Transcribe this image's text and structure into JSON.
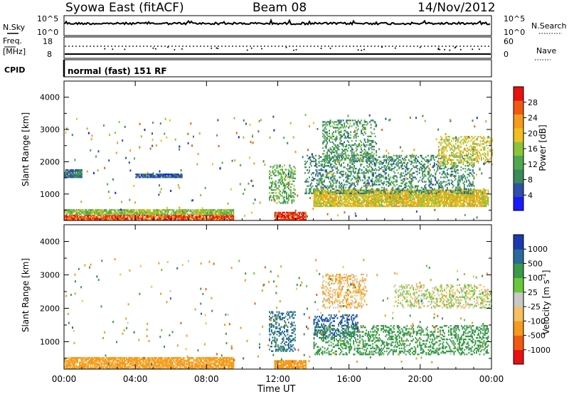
{
  "header": {
    "title": "Syowa East (fitACF)",
    "beam": "Beam 08",
    "date": "14/Nov/2012"
  },
  "nsky_panel": {
    "label": "N.Sky",
    "left_ticks": [
      "10^5",
      "10^0"
    ],
    "right_ticks": [
      "10^5",
      "10^0"
    ],
    "right_label": "N.Search"
  },
  "freq_panel": {
    "label_line1": "Freq.",
    "label_line2": "[MHz]",
    "left_ticks": [
      "18",
      "8"
    ],
    "right_ticks": [
      "60",
      "0"
    ],
    "right_label": "Nave"
  },
  "cpid_panel": {
    "label": "CPID",
    "mode_text": "normal (fast) 151 RF"
  },
  "x_axis": {
    "label": "Time UT",
    "ticks": [
      "00:00",
      "04:00",
      "08:00",
      "12:00",
      "16:00",
      "20:00",
      "00:00"
    ]
  },
  "colors": {
    "power_scale": [
      "#1a1aff",
      "#2f4fa8",
      "#3a8a5a",
      "#4fa84f",
      "#8ac43a",
      "#f0c020",
      "#f59a1a",
      "#f05a10",
      "#e81010"
    ],
    "velocity_scale": [
      "#e81010",
      "#f05a10",
      "#f59a1a",
      "#f5c060",
      "#c8c8c8",
      "#6ac83a",
      "#3a9a4a",
      "#2a6a9a",
      "#1a3ab0"
    ]
  },
  "chart_data": [
    {
      "type": "heatmap",
      "title": "",
      "xlabel": "Time UT",
      "ylabel": "Slant Range [km]",
      "xlim": [
        0,
        24
      ],
      "ylim": [
        180,
        4500
      ],
      "yticks": [
        "1000",
        "2000",
        "3000",
        "4000"
      ],
      "colorbar": {
        "label": "Power [dB]",
        "ticks": [
          "4",
          "8",
          "12",
          "16",
          "20",
          "24",
          "28"
        ],
        "range": [
          0,
          30
        ]
      },
      "echo_regions": [
        {
          "t": [
            0.0,
            9.5
          ],
          "range": [
            180,
            350
          ],
          "level": 26
        },
        {
          "t": [
            0.0,
            9.5
          ],
          "range": [
            350,
            520
          ],
          "level": 14
        },
        {
          "t": [
            11.8,
            13.6
          ],
          "range": [
            180,
            420
          ],
          "level": 27
        },
        {
          "t": [
            11.5,
            13.0
          ],
          "range": [
            700,
            1900
          ],
          "level": 12
        },
        {
          "t": [
            14.0,
            23.8
          ],
          "range": [
            600,
            1100
          ],
          "level": 18
        },
        {
          "t": [
            13.5,
            23.0
          ],
          "range": [
            1000,
            2200
          ],
          "level": 9
        },
        {
          "t": [
            14.5,
            17.5
          ],
          "range": [
            2000,
            3300
          ],
          "level": 10
        },
        {
          "t": [
            21.0,
            24.0
          ],
          "range": [
            1900,
            2800
          ],
          "level": 17
        },
        {
          "t": [
            0.0,
            1.0
          ],
          "range": [
            1500,
            1750
          ],
          "level": 8
        },
        {
          "t": [
            4.0,
            6.6
          ],
          "range": [
            1500,
            1600
          ],
          "level": 6
        }
      ]
    },
    {
      "type": "heatmap",
      "title": "",
      "xlabel": "Time UT",
      "ylabel": "Slant Range [km]",
      "xlim": [
        0,
        24
      ],
      "ylim": [
        180,
        4500
      ],
      "yticks": [
        "1000",
        "2000",
        "3000",
        "4000"
      ],
      "colorbar": {
        "label": "Velocity [m s^-1]",
        "ticks": [
          "-1000",
          "-500",
          "-100",
          "-25",
          "25",
          "100",
          "500",
          "1000"
        ]
      },
      "echo_regions": [
        {
          "t": [
            0.0,
            9.5
          ],
          "range": [
            180,
            520
          ],
          "velocity": -150
        },
        {
          "t": [
            11.8,
            13.6
          ],
          "range": [
            180,
            420
          ],
          "velocity": -300
        },
        {
          "t": [
            11.5,
            13.0
          ],
          "range": [
            700,
            1900
          ],
          "velocity": 600
        },
        {
          "t": [
            14.0,
            16.5
          ],
          "range": [
            1100,
            1800
          ],
          "velocity": 900
        },
        {
          "t": [
            14.0,
            23.8
          ],
          "range": [
            600,
            1500
          ],
          "velocity": 300
        },
        {
          "t": [
            14.5,
            17.0
          ],
          "range": [
            2000,
            3000
          ],
          "velocity": -80
        },
        {
          "t": [
            18.5,
            24.0
          ],
          "range": [
            2000,
            2700
          ],
          "velocity": 0
        }
      ]
    }
  ]
}
